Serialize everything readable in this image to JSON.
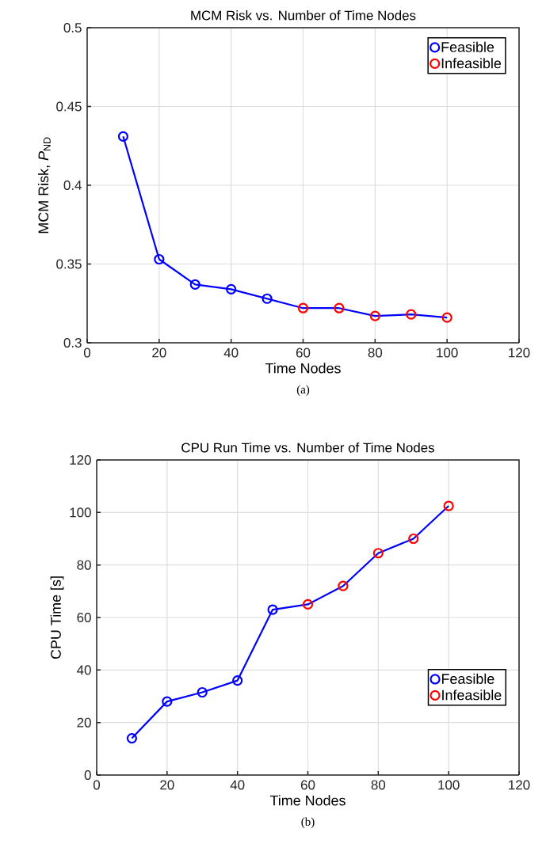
{
  "chart_data": [
    {
      "type": "line",
      "title": "MCM Risk vs. Number of Time Nodes",
      "xlabel": "Time Nodes",
      "ylabel": "MCM Risk,  *P*$_{ND}$",
      "x": [
        10,
        20,
        30,
        40,
        50,
        60,
        70,
        80,
        90,
        100
      ],
      "xlim": [
        0,
        120
      ],
      "xticks": [
        0,
        20,
        40,
        60,
        80,
        100,
        120
      ],
      "ylim": [
        0.3,
        0.5
      ],
      "yticks": [
        0.3,
        0.35,
        0.4,
        0.45,
        0.5
      ],
      "grid": true,
      "legend": "top right",
      "marker": "circle",
      "annotations": [
        "(a)"
      ],
      "series": [
        {
          "marker": "none",
          "color": "#0000ff",
          "values": [
            0.431,
            0.353,
            0.337,
            0.334,
            0.328,
            0.322,
            0.322,
            0.317,
            0.318,
            0.316
          ]
        },
        {
          "type": "scatter",
          "name": "Feasible",
          "color": "#0000ff",
          "values": [
            0.431,
            0.353,
            0.337,
            0.334,
            0.328,
            null,
            null,
            null,
            null,
            null
          ]
        },
        {
          "type": "scatter",
          "name": "Infeasible",
          "color": "#ff0000",
          "values": [
            null,
            null,
            null,
            null,
            null,
            0.322,
            0.322,
            0.317,
            0.318,
            0.316
          ]
        }
      ]
    },
    {
      "type": "line",
      "title": "CPU Run Time vs. Number of Time Nodes",
      "xlabel": "Time Nodes",
      "ylabel": "CPU Time [s]",
      "x": [
        10,
        20,
        30,
        40,
        50,
        60,
        70,
        80,
        90,
        100
      ],
      "xlim": [
        0,
        120
      ],
      "xticks": [
        0,
        20,
        40,
        60,
        80,
        100,
        120
      ],
      "ylim": [
        0,
        120
      ],
      "yticks": [
        0,
        20,
        40,
        60,
        80,
        100,
        120
      ],
      "grid": true,
      "legend": "bottom right",
      "marker": "circle",
      "annotations": [
        "(b)"
      ],
      "series": [
        {
          "marker": "none",
          "color": "#0000ff",
          "values": [
            14,
            28,
            31.5,
            36,
            63,
            65,
            72,
            84.5,
            90,
            102.5
          ]
        },
        {
          "type": "scatter",
          "name": "Feasible",
          "color": "#0000ff",
          "values": [
            14,
            28,
            31.5,
            36,
            63,
            null,
            null,
            null,
            null,
            null
          ]
        },
        {
          "type": "scatter",
          "name": "Infeasible",
          "color": "#ff0000",
          "values": [
            null,
            null,
            null,
            null,
            null,
            65,
            72,
            84.5,
            90,
            102.5
          ]
        }
      ]
    }
  ]
}
